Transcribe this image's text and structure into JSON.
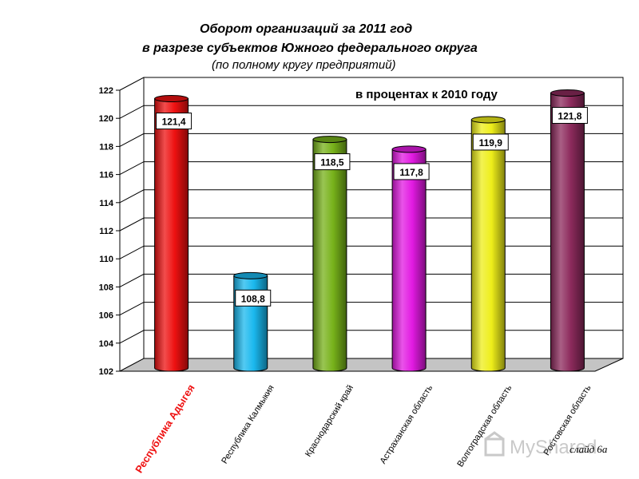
{
  "title": {
    "line1": "Оборот организаций   за 2011 год",
    "line2": "в разрезе   субъектов Южного федерального округа",
    "line3": "(по полному кругу предприятий)"
  },
  "slide_label": "слайд 6а",
  "watermark_text": "MyShared",
  "chart_data": {
    "type": "bar",
    "annotation": "в процентах к 2010 году",
    "categories": [
      "Республика Адыгея",
      "Республика Калмыкия",
      "Краснодарский край",
      "Астраханская область",
      "Волгоградская область",
      "Ростовская область"
    ],
    "values": [
      121.4,
      108.8,
      118.5,
      117.8,
      119.9,
      121.8
    ],
    "value_labels": [
      "121,4",
      "108,8",
      "118,5",
      "117,8",
      "119,9",
      "121,8"
    ],
    "colors": [
      "#ee1111",
      "#1ab8ee",
      "#77b21a",
      "#e21ae2",
      "#eeee1a",
      "#8c2a5c"
    ],
    "highlight_category_color": "#ee1111",
    "ylim": [
      102,
      122
    ],
    "yticks": [
      102,
      104,
      106,
      108,
      110,
      112,
      114,
      116,
      118,
      120,
      122
    ],
    "grid": true,
    "style": "3d-cylinder"
  }
}
